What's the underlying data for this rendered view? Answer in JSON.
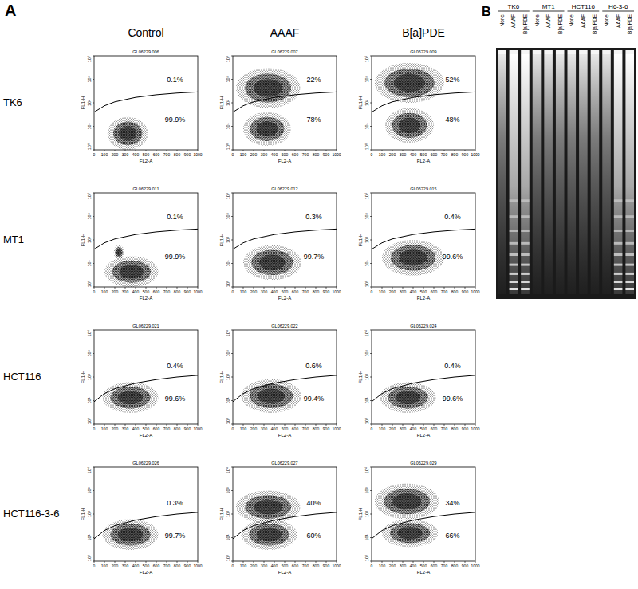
{
  "panel_a": {
    "label": "A",
    "column_labels": [
      "Control",
      "AAAF",
      "B[a]PDE"
    ],
    "row_labels": [
      "TK6",
      "MT1",
      "HCT116",
      "HCT116-3-6"
    ]
  },
  "chart_data": [
    {
      "type": "scatter",
      "title": "GL06229.006",
      "x_label": "FL2-A",
      "y_label": "FL1-H",
      "xlim": [
        0,
        1000
      ],
      "ylim": [
        1,
        10000
      ],
      "log": "y",
      "xticks": [
        0,
        100,
        200,
        300,
        400,
        500,
        600,
        700,
        800,
        900,
        1000
      ],
      "yticks": [
        {
          "value": 1,
          "label": "10⁰"
        },
        {
          "value": 10,
          "label": "10¹"
        },
        {
          "value": 100,
          "label": "10²"
        },
        {
          "value": 1000,
          "label": "10³"
        },
        {
          "value": 10000,
          "label": "10⁴"
        }
      ],
      "gate": {
        "x": [
          0,
          100,
          200,
          400,
          600,
          800,
          1000
        ],
        "y": [
          40,
          75,
          110,
          170,
          220,
          260,
          290
        ]
      },
      "populations": [
        {
          "x": [
            130,
            520
          ],
          "y": [
            1,
            25
          ]
        }
      ],
      "annotations": [
        {
          "text": "0.1%",
          "x": 780,
          "y": 1000
        },
        {
          "text": "99.9%",
          "x": 780,
          "y": 20
        }
      ]
    },
    {
      "type": "scatter",
      "title": "GL06229.007",
      "x_label": "FL2-A",
      "y_label": "FL1-H",
      "xlim": [
        0,
        1000
      ],
      "ylim": [
        1,
        10000
      ],
      "log": "y",
      "xticks": [
        0,
        100,
        200,
        300,
        400,
        500,
        600,
        700,
        800,
        900,
        1000
      ],
      "yticks": [
        {
          "value": 1,
          "label": "10⁰"
        },
        {
          "value": 10,
          "label": "10¹"
        },
        {
          "value": 100,
          "label": "10²"
        },
        {
          "value": 1000,
          "label": "10³"
        },
        {
          "value": 10000,
          "label": "10⁴"
        }
      ],
      "gate": {
        "x": [
          0,
          100,
          200,
          400,
          600,
          800,
          1000
        ],
        "y": [
          40,
          75,
          110,
          170,
          220,
          260,
          290
        ]
      },
      "populations": [
        {
          "x": [
            100,
            560
          ],
          "y": [
            1.5,
            40
          ]
        },
        {
          "x": [
            30,
            650
          ],
          "y": [
            60,
            3000
          ]
        }
      ],
      "annotations": [
        {
          "text": "22%",
          "x": 780,
          "y": 1000
        },
        {
          "text": "78%",
          "x": 780,
          "y": 20
        }
      ]
    },
    {
      "type": "scatter",
      "title": "GL06229.009",
      "x_label": "FL2-A",
      "y_label": "FL1-H",
      "xlim": [
        0,
        1000
      ],
      "ylim": [
        1,
        10000
      ],
      "log": "y",
      "xticks": [
        0,
        100,
        200,
        300,
        400,
        500,
        600,
        700,
        800,
        900,
        1000
      ],
      "yticks": [
        {
          "value": 1,
          "label": "10⁰"
        },
        {
          "value": 10,
          "label": "10¹"
        },
        {
          "value": 100,
          "label": "10²"
        },
        {
          "value": 1000,
          "label": "10³"
        },
        {
          "value": 10000,
          "label": "10⁴"
        }
      ],
      "gate": {
        "x": [
          0,
          100,
          200,
          400,
          600,
          800,
          1000
        ],
        "y": [
          40,
          75,
          110,
          170,
          220,
          260,
          290
        ]
      },
      "populations": [
        {
          "x": [
            30,
            700
          ],
          "y": [
            100,
            5000
          ]
        },
        {
          "x": [
            130,
            600
          ],
          "y": [
            2,
            60
          ]
        }
      ],
      "annotations": [
        {
          "text": "52%",
          "x": 780,
          "y": 1000
        },
        {
          "text": "48%",
          "x": 780,
          "y": 20
        }
      ]
    },
    {
      "type": "scatter",
      "title": "GL06229.011",
      "x_label": "FL2-A",
      "y_label": "FL1-H",
      "xlim": [
        0,
        1000
      ],
      "ylim": [
        1,
        10000
      ],
      "log": "y",
      "xticks": [
        0,
        100,
        200,
        300,
        400,
        500,
        600,
        700,
        800,
        900,
        1000
      ],
      "yticks": [
        {
          "value": 1,
          "label": "10⁰"
        },
        {
          "value": 10,
          "label": "10¹"
        },
        {
          "value": 100,
          "label": "10²"
        },
        {
          "value": 1000,
          "label": "10³"
        },
        {
          "value": 10000,
          "label": "10⁴"
        }
      ],
      "gate": {
        "x": [
          0,
          100,
          200,
          400,
          600,
          800,
          1000
        ],
        "y": [
          40,
          75,
          110,
          170,
          220,
          260,
          290
        ]
      },
      "populations": [
        {
          "x": [
            100,
            620
          ],
          "y": [
            1,
            20
          ]
        },
        {
          "x": [
            190,
            290
          ],
          "y": [
            15,
            60
          ]
        }
      ],
      "annotations": [
        {
          "text": "0.1%",
          "x": 780,
          "y": 1000
        },
        {
          "text": "99.9%",
          "x": 780,
          "y": 20
        }
      ]
    },
    {
      "type": "scatter",
      "title": "GL06229.012",
      "x_label": "FL2-A",
      "y_label": "FL1-H",
      "xlim": [
        0,
        1000
      ],
      "ylim": [
        1,
        10000
      ],
      "log": "y",
      "xticks": [
        0,
        100,
        200,
        300,
        400,
        500,
        600,
        700,
        800,
        900,
        1000
      ],
      "yticks": [
        {
          "value": 1,
          "label": "10⁰"
        },
        {
          "value": 10,
          "label": "10¹"
        },
        {
          "value": 100,
          "label": "10²"
        },
        {
          "value": 1000,
          "label": "10³"
        },
        {
          "value": 10000,
          "label": "10⁴"
        }
      ],
      "gate": {
        "x": [
          0,
          100,
          200,
          400,
          600,
          800,
          1000
        ],
        "y": [
          40,
          75,
          110,
          170,
          220,
          260,
          290
        ]
      },
      "populations": [
        {
          "x": [
            100,
            660
          ],
          "y": [
            2,
            60
          ]
        }
      ],
      "annotations": [
        {
          "text": "0.3%",
          "x": 780,
          "y": 1000
        },
        {
          "text": "99.7%",
          "x": 780,
          "y": 20
        }
      ]
    },
    {
      "type": "scatter",
      "title": "GL06229.015",
      "x_label": "FL2-A",
      "y_label": "FL1-H",
      "xlim": [
        0,
        1000
      ],
      "ylim": [
        1,
        10000
      ],
      "log": "y",
      "xticks": [
        0,
        100,
        200,
        300,
        400,
        500,
        600,
        700,
        800,
        900,
        1000
      ],
      "yticks": [
        {
          "value": 1,
          "label": "10⁰"
        },
        {
          "value": 10,
          "label": "10¹"
        },
        {
          "value": 100,
          "label": "10²"
        },
        {
          "value": 1000,
          "label": "10³"
        },
        {
          "value": 10000,
          "label": "10⁴"
        }
      ],
      "gate": {
        "x": [
          0,
          100,
          200,
          400,
          600,
          800,
          1000
        ],
        "y": [
          40,
          75,
          110,
          170,
          220,
          260,
          290
        ]
      },
      "populations": [
        {
          "x": [
            100,
            700
          ],
          "y": [
            3,
            100
          ]
        }
      ],
      "annotations": [
        {
          "text": "0.4%",
          "x": 780,
          "y": 1000
        },
        {
          "text": "99.6%",
          "x": 780,
          "y": 20
        }
      ]
    },
    {
      "type": "scatter",
      "title": "GL06229.021",
      "x_label": "FL2-A",
      "y_label": "FL1-H",
      "xlim": [
        0,
        1000
      ],
      "ylim": [
        1,
        10000
      ],
      "log": "y",
      "xticks": [
        0,
        100,
        200,
        300,
        400,
        500,
        600,
        700,
        800,
        900,
        1000
      ],
      "yticks": [
        {
          "value": 1,
          "label": "10⁰"
        },
        {
          "value": 10,
          "label": "10¹"
        },
        {
          "value": 100,
          "label": "10²"
        },
        {
          "value": 1000,
          "label": "10³"
        },
        {
          "value": 10000,
          "label": "10⁴"
        }
      ],
      "gate": {
        "x": [
          0,
          100,
          200,
          400,
          600,
          800,
          1000
        ],
        "y": [
          9,
          20,
          32,
          55,
          78,
          100,
          118
        ]
      },
      "populations": [
        {
          "x": [
            80,
            620
          ],
          "y": [
            3,
            60
          ]
        }
      ],
      "annotations": [
        {
          "text": "0.4%",
          "x": 780,
          "y": 300
        },
        {
          "text": "99.6%",
          "x": 780,
          "y": 12
        }
      ]
    },
    {
      "type": "scatter",
      "title": "GL06229.022",
      "x_label": "FL2-A",
      "y_label": "FL1-H",
      "xlim": [
        0,
        1000
      ],
      "ylim": [
        1,
        10000
      ],
      "log": "y",
      "xticks": [
        0,
        100,
        200,
        300,
        400,
        500,
        600,
        700,
        800,
        900,
        1000
      ],
      "yticks": [
        {
          "value": 1,
          "label": "10⁰"
        },
        {
          "value": 10,
          "label": "10¹"
        },
        {
          "value": 100,
          "label": "10²"
        },
        {
          "value": 1000,
          "label": "10³"
        },
        {
          "value": 10000,
          "label": "10⁴"
        }
      ],
      "gate": {
        "x": [
          0,
          100,
          200,
          400,
          600,
          800,
          1000
        ],
        "y": [
          9,
          20,
          32,
          55,
          78,
          100,
          118
        ]
      },
      "populations": [
        {
          "x": [
            80,
            660
          ],
          "y": [
            3,
            80
          ]
        }
      ],
      "annotations": [
        {
          "text": "0.6%",
          "x": 780,
          "y": 300
        },
        {
          "text": "99.4%",
          "x": 780,
          "y": 12
        }
      ]
    },
    {
      "type": "scatter",
      "title": "GL06229.024",
      "x_label": "FL2-A",
      "y_label": "FL1-H",
      "xlim": [
        0,
        1000
      ],
      "ylim": [
        1,
        10000
      ],
      "log": "y",
      "xticks": [
        0,
        100,
        200,
        300,
        400,
        500,
        600,
        700,
        800,
        900,
        1000
      ],
      "yticks": [
        {
          "value": 1,
          "label": "10⁰"
        },
        {
          "value": 10,
          "label": "10¹"
        },
        {
          "value": 100,
          "label": "10²"
        },
        {
          "value": 1000,
          "label": "10³"
        },
        {
          "value": 10000,
          "label": "10⁴"
        }
      ],
      "gate": {
        "x": [
          0,
          100,
          200,
          400,
          600,
          800,
          1000
        ],
        "y": [
          9,
          20,
          32,
          55,
          78,
          100,
          118
        ]
      },
      "populations": [
        {
          "x": [
            80,
            620
          ],
          "y": [
            3,
            60
          ]
        }
      ],
      "annotations": [
        {
          "text": "0.4%",
          "x": 780,
          "y": 300
        },
        {
          "text": "99.6%",
          "x": 780,
          "y": 12
        }
      ]
    },
    {
      "type": "scatter",
      "title": "GL06229.026",
      "x_label": "FL2-A",
      "y_label": "FL1-H",
      "xlim": [
        0,
        1000
      ],
      "ylim": [
        1,
        10000
      ],
      "log": "y",
      "xticks": [
        0,
        100,
        200,
        300,
        400,
        500,
        600,
        700,
        800,
        900,
        1000
      ],
      "yticks": [
        {
          "value": 1,
          "label": "10⁰"
        },
        {
          "value": 10,
          "label": "10¹"
        },
        {
          "value": 100,
          "label": "10²"
        },
        {
          "value": 1000,
          "label": "10³"
        },
        {
          "value": 10000,
          "label": "10⁴"
        }
      ],
      "gate": {
        "x": [
          0,
          100,
          200,
          400,
          600,
          800,
          1000
        ],
        "y": [
          9,
          20,
          32,
          55,
          78,
          100,
          118
        ]
      },
      "populations": [
        {
          "x": [
            80,
            620
          ],
          "y": [
            3,
            60
          ]
        }
      ],
      "annotations": [
        {
          "text": "0.3%",
          "x": 780,
          "y": 300
        },
        {
          "text": "99.7%",
          "x": 780,
          "y": 12
        }
      ]
    },
    {
      "type": "scatter",
      "title": "GL06229.027",
      "x_label": "FL2-A",
      "y_label": "FL1-H",
      "xlim": [
        0,
        1000
      ],
      "ylim": [
        1,
        10000
      ],
      "log": "y",
      "xticks": [
        0,
        100,
        200,
        300,
        400,
        500,
        600,
        700,
        800,
        900,
        1000
      ],
      "yticks": [
        {
          "value": 1,
          "label": "10⁰"
        },
        {
          "value": 10,
          "label": "10¹"
        },
        {
          "value": 100,
          "label": "10²"
        },
        {
          "value": 1000,
          "label": "10³"
        },
        {
          "value": 10000,
          "label": "10⁴"
        }
      ],
      "gate": {
        "x": [
          0,
          100,
          200,
          400,
          600,
          800,
          1000
        ],
        "y": [
          9,
          20,
          32,
          55,
          78,
          100,
          118
        ]
      },
      "populations": [
        {
          "x": [
            80,
            620
          ],
          "y": [
            3,
            60
          ]
        },
        {
          "x": [
            30,
            650
          ],
          "y": [
            40,
            1000
          ]
        }
      ],
      "annotations": [
        {
          "text": "40%",
          "x": 780,
          "y": 300
        },
        {
          "text": "60%",
          "x": 780,
          "y": 12
        }
      ]
    },
    {
      "type": "scatter",
      "title": "GL06229.029",
      "x_label": "FL2-A",
      "y_label": "FL1-H",
      "xlim": [
        0,
        1000
      ],
      "ylim": [
        1,
        10000
      ],
      "log": "y",
      "xticks": [
        0,
        100,
        200,
        300,
        400,
        500,
        600,
        700,
        800,
        900,
        1000
      ],
      "yticks": [
        {
          "value": 1,
          "label": "10⁰"
        },
        {
          "value": 10,
          "label": "10¹"
        },
        {
          "value": 100,
          "label": "10²"
        },
        {
          "value": 1000,
          "label": "10³"
        },
        {
          "value": 10000,
          "label": "10⁴"
        }
      ],
      "gate": {
        "x": [
          0,
          100,
          200,
          400,
          600,
          800,
          1000
        ],
        "y": [
          9,
          20,
          32,
          55,
          78,
          100,
          118
        ]
      },
      "populations": [
        {
          "x": [
            100,
            640
          ],
          "y": [
            4,
            60
          ]
        },
        {
          "x": [
            30,
            650
          ],
          "y": [
            60,
            2000
          ]
        }
      ],
      "annotations": [
        {
          "text": "34%",
          "x": 780,
          "y": 300
        },
        {
          "text": "66%",
          "x": 780,
          "y": 12
        }
      ]
    }
  ],
  "panel_b": {
    "label": "B",
    "groups": [
      {
        "label": "TK6",
        "lanes": [
          {
            "label": "None",
            "laddered": false
          },
          {
            "label": "AAAF",
            "laddered": true
          },
          {
            "label": "B[a]PDE",
            "laddered": true
          }
        ]
      },
      {
        "label": "MT1",
        "lanes": [
          {
            "label": "None",
            "laddered": false
          },
          {
            "label": "AAAF",
            "laddered": false
          },
          {
            "label": "B[a]PDE",
            "laddered": false
          }
        ]
      },
      {
        "label": "HCT116",
        "lanes": [
          {
            "label": "None",
            "laddered": false
          },
          {
            "label": "AAAF",
            "laddered": false
          },
          {
            "label": "B[a]PDE",
            "laddered": false
          }
        ]
      },
      {
        "label": "H6-3-6",
        "lanes": [
          {
            "label": "None",
            "laddered": false
          },
          {
            "label": "AAAF",
            "laddered": true
          },
          {
            "label": "B[a]PDE",
            "laddered": true
          }
        ]
      }
    ]
  }
}
